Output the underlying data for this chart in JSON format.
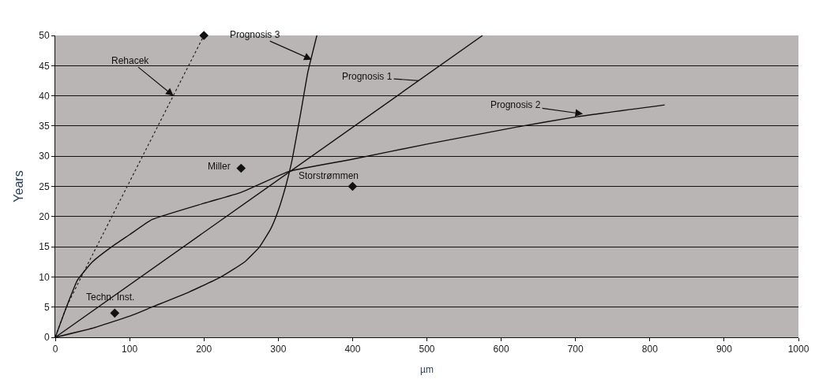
{
  "chart_data": {
    "type": "line",
    "xlabel": "µm",
    "ylabel": "Years",
    "xlim": [
      0,
      1000
    ],
    "xticks": [
      0,
      100,
      200,
      300,
      400,
      500,
      600,
      700,
      800,
      900,
      1000
    ],
    "ylim": [
      0,
      50
    ],
    "yticks": [
      0,
      5,
      10,
      15,
      20,
      25,
      30,
      35,
      40,
      45,
      50
    ],
    "grid": "y",
    "series": [
      {
        "color": "#222222",
        "line_style": "dotted",
        "x": [
          0,
          15,
          35,
          200
        ],
        "values": [
          0,
          5,
          10,
          50
        ]
      },
      {
        "color": "#111111",
        "line_style": "solid",
        "x": [
          0,
          575
        ],
        "values": [
          0,
          50
        ]
      },
      {
        "color": "#111111",
        "line_style": "solid",
        "x": [
          0,
          15,
          30,
          50,
          76,
          100,
          130,
          200,
          250,
          315,
          400,
          500,
          620,
          700,
          820
        ],
        "values": [
          0,
          5,
          9.5,
          12.5,
          15,
          17,
          19.5,
          22.2,
          24,
          27.5,
          29.5,
          32,
          34.8,
          36.5,
          38.5
        ]
      },
      {
        "color": "#111111",
        "line_style": "solid",
        "x": [
          0,
          50,
          100,
          130,
          180,
          223,
          255,
          275,
          290,
          300,
          310,
          318,
          330,
          340,
          352
        ],
        "values": [
          0,
          1.5,
          3.5,
          5,
          7.5,
          10,
          12.5,
          15,
          18,
          21,
          25,
          29,
          37,
          44,
          50
        ]
      },
      {
        "type": "scatter",
        "color": "#111111",
        "marker": "diamond",
        "x": [
          200,
          250,
          400,
          80
        ],
        "values": [
          50,
          28,
          25,
          4
        ]
      }
    ],
    "annotations": [
      {
        "text": "Rehacek",
        "x": 159,
        "y": 40
      },
      {
        "text": "Prognosis 3",
        "x": 345,
        "y": 46
      },
      {
        "text": "Prognosis 1",
        "x": 489,
        "y": 42.5
      },
      {
        "text": "Prognosis 2",
        "x": 710,
        "y": 37
      },
      {
        "text": "Miller",
        "x": 250,
        "y": 28
      },
      {
        "text": "Storstrømmen",
        "x": 400,
        "y": 25
      },
      {
        "text": "Techn. Inst.",
        "x": 80,
        "y": 4
      }
    ]
  }
}
